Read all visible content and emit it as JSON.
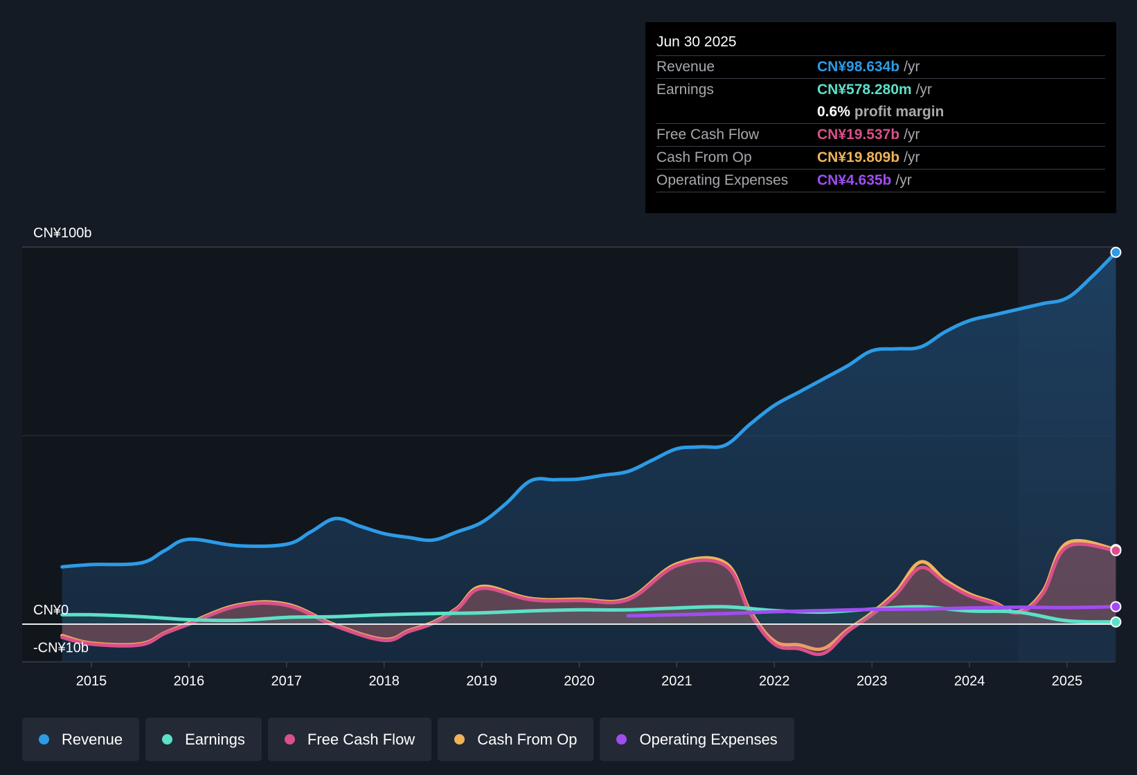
{
  "tooltip": {
    "date": "Jun 30 2025",
    "rows": [
      {
        "name": "Revenue",
        "value": "CN¥98.634b",
        "unit": "/yr",
        "color": "#2d9be6"
      },
      {
        "name": "Earnings",
        "value": "CN¥578.280m",
        "unit": "/yr",
        "color": "#5ce0c8"
      },
      {
        "name": "",
        "value": "0.6%",
        "unit": "profit margin",
        "color": "#ffffff"
      },
      {
        "name": "Free Cash Flow",
        "value": "CN¥19.537b",
        "unit": "/yr",
        "color": "#d9508a"
      },
      {
        "name": "Cash From Op",
        "value": "CN¥19.809b",
        "unit": "/yr",
        "color": "#f0b35a"
      },
      {
        "name": "Operating Expenses",
        "value": "CN¥4.635b",
        "unit": "/yr",
        "color": "#a04df0"
      }
    ]
  },
  "legend": [
    {
      "label": "Revenue",
      "color": "#2d9be6"
    },
    {
      "label": "Earnings",
      "color": "#5ce0c8"
    },
    {
      "label": "Free Cash Flow",
      "color": "#d9508a"
    },
    {
      "label": "Cash From Op",
      "color": "#f0b35a"
    },
    {
      "label": "Operating Expenses",
      "color": "#a04df0"
    }
  ],
  "chart_data": {
    "type": "area",
    "title": "",
    "xlabel": "",
    "ylabel": "",
    "ylim": [
      -10,
      100
    ],
    "y_axis_labels": [
      {
        "label": "CN¥100b",
        "value": 100
      },
      {
        "label": "CN¥0",
        "value": 0
      },
      {
        "label": "-CN¥10b",
        "value": -10
      }
    ],
    "x_ticks": [
      "2015",
      "2016",
      "2017",
      "2018",
      "2019",
      "2020",
      "2021",
      "2022",
      "2023",
      "2024",
      "2025"
    ],
    "x_tick_values": [
      2015,
      2016,
      2017,
      2018,
      2019,
      2020,
      2021,
      2022,
      2023,
      2024,
      2025
    ],
    "xlim": [
      2014.3,
      2025.5
    ],
    "forecast_start": 2024.5,
    "series": [
      {
        "name": "Revenue",
        "color": "#2d9be6",
        "x": [
          2014.7,
          2015.0,
          2015.5,
          2015.75,
          2016.0,
          2016.5,
          2017.0,
          2017.25,
          2017.5,
          2017.75,
          2018.0,
          2018.25,
          2018.5,
          2018.75,
          2019.0,
          2019.25,
          2019.5,
          2019.75,
          2020.0,
          2020.25,
          2020.5,
          2020.75,
          2021.0,
          2021.25,
          2021.5,
          2021.75,
          2022.0,
          2022.25,
          2022.5,
          2022.75,
          2023.0,
          2023.25,
          2023.5,
          2023.75,
          2024.0,
          2024.25,
          2024.5,
          2024.75,
          2025.0,
          2025.25,
          2025.5
        ],
        "values": [
          15.2,
          15.8,
          16.2,
          19.5,
          22.5,
          20.8,
          21.2,
          24.5,
          28.0,
          26.0,
          24.0,
          23.0,
          22.3,
          24.5,
          27.0,
          32.0,
          38.0,
          38.3,
          38.5,
          39.5,
          40.5,
          43.5,
          46.5,
          47.0,
          47.5,
          53.0,
          58.0,
          61.5,
          65.0,
          68.5,
          72.5,
          73.0,
          73.5,
          77.5,
          80.5,
          82.0,
          83.5,
          85.0,
          86.5,
          92.0,
          98.6
        ]
      },
      {
        "name": "Earnings",
        "color": "#5ce0c8",
        "x": [
          2014.7,
          2015.0,
          2015.5,
          2016.0,
          2016.5,
          2017.0,
          2017.5,
          2018.0,
          2018.5,
          2019.0,
          2019.5,
          2020.0,
          2020.5,
          2021.0,
          2021.5,
          2022.0,
          2022.5,
          2023.0,
          2023.5,
          2024.0,
          2024.5,
          2025.0,
          2025.5
        ],
        "values": [
          2.5,
          2.5,
          2.0,
          1.2,
          1.0,
          1.8,
          2.0,
          2.5,
          2.8,
          3.0,
          3.5,
          3.8,
          3.8,
          4.3,
          4.6,
          3.6,
          3.2,
          4.0,
          4.6,
          3.5,
          3.2,
          0.9,
          0.58
        ]
      },
      {
        "name": "Free Cash Flow",
        "color": "#d9508a",
        "x": [
          2014.7,
          2015.0,
          2015.5,
          2015.75,
          2016.0,
          2016.5,
          2017.0,
          2017.5,
          2018.0,
          2018.25,
          2018.5,
          2018.75,
          2019.0,
          2019.5,
          2020.0,
          2020.5,
          2021.0,
          2021.5,
          2021.75,
          2022.0,
          2022.25,
          2022.5,
          2022.75,
          2023.0,
          2023.25,
          2023.5,
          2023.75,
          2024.0,
          2024.25,
          2024.5,
          2024.75,
          2025.0,
          2025.5
        ],
        "values": [
          -3.5,
          -5.3,
          -5.5,
          -2.5,
          0.0,
          4.8,
          5.0,
          -0.5,
          -4.3,
          -2.0,
          0.2,
          4.0,
          9.5,
          6.5,
          6.3,
          6.5,
          15.5,
          15.5,
          3.0,
          -5.3,
          -6.5,
          -7.8,
          -2.0,
          2.5,
          8.0,
          15.0,
          11.0,
          7.5,
          5.5,
          3.0,
          8.0,
          20.5,
          19.5
        ]
      },
      {
        "name": "Cash From Op",
        "color": "#f0b35a",
        "x": [
          2014.7,
          2015.0,
          2015.5,
          2015.75,
          2016.0,
          2016.5,
          2017.0,
          2017.5,
          2018.0,
          2018.25,
          2018.5,
          2018.75,
          2019.0,
          2019.5,
          2020.0,
          2020.5,
          2021.0,
          2021.5,
          2021.75,
          2022.0,
          2022.25,
          2022.5,
          2022.75,
          2023.0,
          2023.25,
          2023.5,
          2023.75,
          2024.0,
          2024.25,
          2024.5,
          2024.75,
          2025.0,
          2025.5
        ],
        "values": [
          -3.0,
          -5.0,
          -5.2,
          -2.3,
          0.3,
          5.1,
          5.3,
          -0.2,
          -4.0,
          -1.7,
          0.5,
          4.3,
          10.0,
          6.8,
          6.6,
          6.8,
          16.0,
          16.2,
          3.6,
          -4.5,
          -5.5,
          -6.5,
          -1.5,
          3.0,
          8.7,
          16.5,
          11.7,
          8.0,
          5.8,
          3.3,
          8.6,
          21.5,
          19.8
        ]
      },
      {
        "name": "Operating Expenses",
        "color": "#a04df0",
        "x": [
          2020.5,
          2021.0,
          2021.5,
          2022.0,
          2022.5,
          2023.0,
          2023.5,
          2024.0,
          2024.5,
          2025.0,
          2025.5
        ],
        "values": [
          2.2,
          2.5,
          2.8,
          3.3,
          3.6,
          3.9,
          4.0,
          4.3,
          4.5,
          4.4,
          4.64
        ]
      }
    ]
  }
}
